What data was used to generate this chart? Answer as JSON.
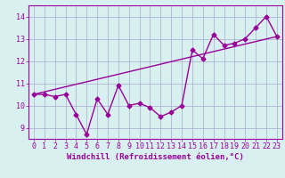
{
  "x": [
    0,
    1,
    2,
    3,
    4,
    5,
    6,
    7,
    8,
    9,
    10,
    11,
    12,
    13,
    14,
    15,
    16,
    17,
    18,
    19,
    20,
    21,
    22,
    23
  ],
  "y": [
    10.5,
    10.5,
    10.4,
    10.5,
    9.6,
    8.7,
    10.3,
    9.6,
    10.9,
    10.0,
    10.1,
    9.9,
    9.5,
    9.7,
    10.0,
    12.5,
    12.1,
    13.2,
    12.7,
    12.8,
    13.0,
    13.5,
    14.0,
    13.1
  ],
  "trend_x": [
    0,
    23
  ],
  "trend_y": [
    10.5,
    13.1
  ],
  "line_color": "#990099",
  "bg_color": "#d8f0f0",
  "grid_color": "#aaaacc",
  "xlabel": "Windchill (Refroidissement éolien,°C)",
  "ylim": [
    8.5,
    14.5
  ],
  "xlim": [
    -0.5,
    23.5
  ],
  "yticks": [
    9,
    10,
    11,
    12,
    13,
    14
  ],
  "xticks": [
    0,
    1,
    2,
    3,
    4,
    5,
    6,
    7,
    8,
    9,
    10,
    11,
    12,
    13,
    14,
    15,
    16,
    17,
    18,
    19,
    20,
    21,
    22,
    23
  ],
  "xlabel_fontsize": 6.5,
  "tick_fontsize": 6.0,
  "marker": "D",
  "markersize": 2.5,
  "linewidth": 1.0
}
